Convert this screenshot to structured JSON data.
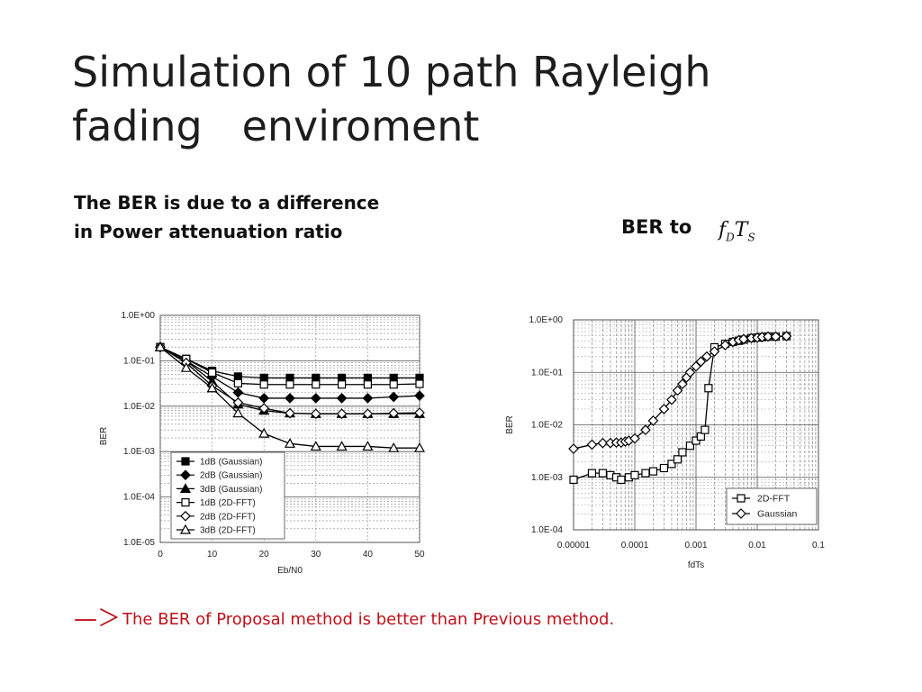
{
  "slide": {
    "title_line1": "Simulation of 10 path Rayleigh",
    "title_line2": "fading   enviroment",
    "subtitle_line1": "The BER is due to a difference",
    "subtitle_line2": "in Power attenuation ratio",
    "ber_to_label": "BER to",
    "math_f": "f",
    "math_d": "D",
    "math_t": "T",
    "math_s": "S",
    "arrow": "—＞",
    "conclusion": "The BER of Proposal method is better than Previous method.",
    "conclusion_color": "#c0101a"
  },
  "chart_data": [
    {
      "type": "line",
      "xlabel": "Eb/N0",
      "ylabel": "BER",
      "x_ticks": [
        "0",
        "10",
        "20",
        "30",
        "40",
        "50"
      ],
      "y_ticks": [
        "1.0E+00",
        "1.0E-01",
        "1.0E-02",
        "1.0E-03",
        "1.0E-04",
        "1.0E-05"
      ],
      "xlim": [
        0,
        50
      ],
      "ylim": [
        1e-05,
        1
      ],
      "y_scale": "log",
      "grid": true,
      "legend_position": "bottom-left",
      "x": [
        0,
        5,
        10,
        15,
        20,
        25,
        30,
        35,
        40,
        45,
        50
      ],
      "series": [
        {
          "name": "1dB (Gaussian)",
          "marker": "square-filled",
          "values": [
            0.2,
            0.11,
            0.06,
            0.045,
            0.042,
            0.042,
            0.042,
            0.042,
            0.042,
            0.042,
            0.042
          ]
        },
        {
          "name": "2dB (Gaussian)",
          "marker": "diamond-filled",
          "values": [
            0.2,
            0.1,
            0.045,
            0.02,
            0.015,
            0.015,
            0.015,
            0.015,
            0.015,
            0.016,
            0.017
          ]
        },
        {
          "name": "3dB (Gaussian)",
          "marker": "triangle-filled",
          "values": [
            0.2,
            0.1,
            0.035,
            0.011,
            0.008,
            0.007,
            0.0068,
            0.0068,
            0.0068,
            0.0068,
            0.0068
          ]
        },
        {
          "name": "1dB (2D-FFT)",
          "marker": "square-open",
          "values": [
            0.2,
            0.11,
            0.055,
            0.032,
            0.03,
            0.03,
            0.03,
            0.03,
            0.03,
            0.03,
            0.031
          ]
        },
        {
          "name": "2dB (2D-FFT)",
          "marker": "diamond-open",
          "values": [
            0.2,
            0.09,
            0.028,
            0.012,
            0.009,
            0.007,
            0.0068,
            0.0068,
            0.0068,
            0.007,
            0.0072
          ]
        },
        {
          "name": "3dB (2D-FFT)",
          "marker": "triangle-open",
          "values": [
            0.2,
            0.07,
            0.025,
            0.007,
            0.0025,
            0.0015,
            0.0013,
            0.0013,
            0.0013,
            0.0012,
            0.0012
          ]
        }
      ]
    },
    {
      "type": "line",
      "xlabel": "fdTs",
      "ylabel": "BER",
      "x_ticks": [
        "0.00001",
        "0.0001",
        "0.001",
        "0.01",
        "0.1"
      ],
      "y_ticks": [
        "1.0E+00",
        "1.0E-01",
        "1.0E-02",
        "1.0E-03",
        "1.0E-04"
      ],
      "xlim": [
        1e-05,
        0.1
      ],
      "ylim": [
        0.0001,
        1
      ],
      "x_scale": "log",
      "y_scale": "log",
      "grid": true,
      "legend_position": "bottom-right",
      "series": [
        {
          "name": "2D-FFT",
          "marker": "square-open",
          "x": [
            1e-05,
            2e-05,
            3e-05,
            4e-05,
            5e-05,
            6e-05,
            8e-05,
            0.0001,
            0.00015,
            0.0002,
            0.0003,
            0.0004,
            0.0005,
            0.0006,
            0.0008,
            0.001,
            0.0012,
            0.0014,
            0.0016,
            0.002,
            0.003,
            0.004,
            0.005,
            0.006,
            0.008,
            0.01,
            0.012,
            0.015,
            0.02,
            0.03
          ],
          "values": [
            0.0009,
            0.0012,
            0.0012,
            0.0011,
            0.001,
            0.0009,
            0.001,
            0.0011,
            0.0012,
            0.0013,
            0.0015,
            0.0018,
            0.0022,
            0.003,
            0.004,
            0.005,
            0.006,
            0.008,
            0.05,
            0.3,
            0.35,
            0.38,
            0.4,
            0.42,
            0.45,
            0.46,
            0.47,
            0.48,
            0.48,
            0.49
          ]
        },
        {
          "name": "Gaussian",
          "marker": "diamond-open",
          "x": [
            1e-05,
            2e-05,
            3e-05,
            4e-05,
            5e-05,
            6e-05,
            7e-05,
            8e-05,
            0.0001,
            0.00015,
            0.0002,
            0.0003,
            0.0004,
            0.0005,
            0.0006,
            0.0007,
            0.0008,
            0.001,
            0.0012,
            0.0015,
            0.002,
            0.003,
            0.004,
            0.005,
            0.006,
            0.008,
            0.01,
            0.012,
            0.015,
            0.02,
            0.03
          ],
          "values": [
            0.0035,
            0.0042,
            0.0045,
            0.0045,
            0.0046,
            0.0046,
            0.0048,
            0.005,
            0.0055,
            0.008,
            0.012,
            0.02,
            0.03,
            0.045,
            0.06,
            0.08,
            0.1,
            0.13,
            0.16,
            0.2,
            0.25,
            0.33,
            0.38,
            0.41,
            0.43,
            0.45,
            0.46,
            0.47,
            0.48,
            0.48,
            0.49
          ]
        }
      ]
    }
  ]
}
